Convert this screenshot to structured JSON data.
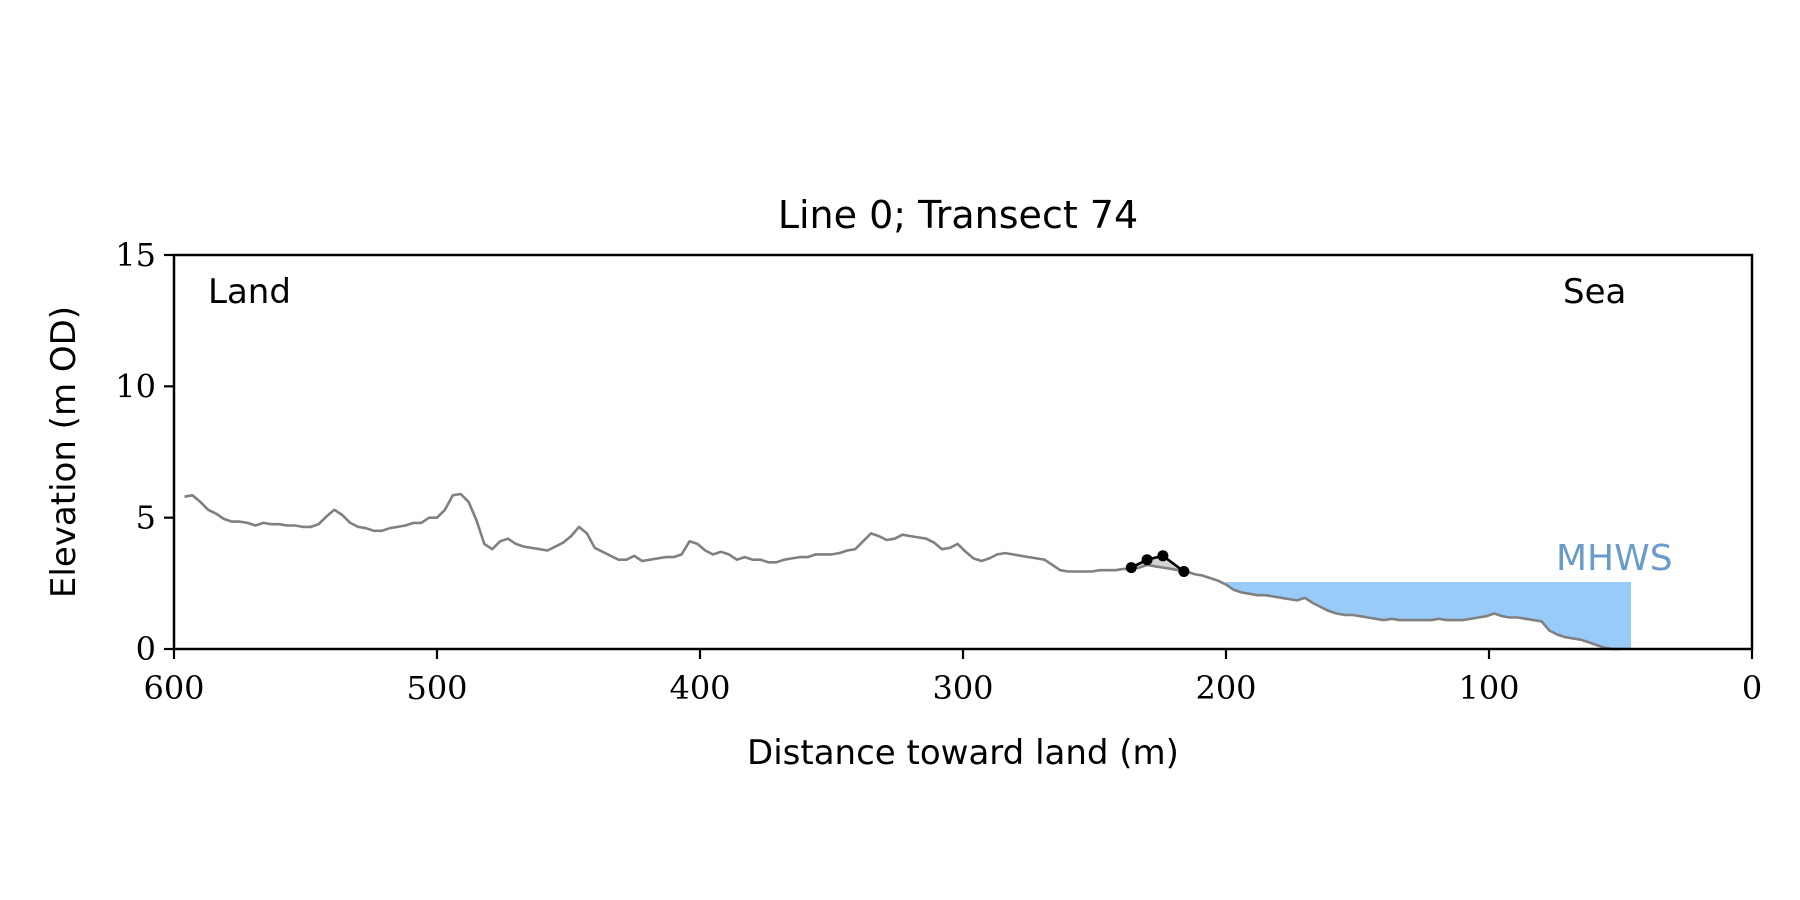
{
  "chart_data": {
    "type": "line",
    "title": "Line 0; Transect 74",
    "xlabel": "Distance toward land (m)",
    "ylabel": "Elevation (m OD)",
    "xlim": [
      600,
      0
    ],
    "ylim": [
      0,
      15
    ],
    "xticks": [
      "600",
      "500",
      "400",
      "300",
      "200",
      "100",
      "0"
    ],
    "yticks": [
      "0",
      "5",
      "10",
      "15"
    ],
    "grid": false,
    "annotations": {
      "land_label": "Land",
      "sea_label": "Sea",
      "mhws_label": "MHWS"
    },
    "mhws": {
      "level": 2.55,
      "x_start": 200,
      "x_end": 46
    },
    "colors": {
      "profile": "#808080",
      "water": "#99cbf9",
      "mhws_text": "#6a9bcb",
      "markers": "#000000",
      "shading": "#d3d3d3"
    },
    "profile": {
      "x": [
        596,
        593,
        590,
        587,
        584,
        581,
        578,
        575,
        572,
        569,
        566,
        563,
        560,
        557,
        554,
        551,
        548,
        545,
        542,
        539,
        536,
        533,
        530,
        527,
        524,
        521,
        518,
        515,
        512,
        509,
        506,
        503,
        500,
        497,
        494,
        491,
        488,
        485,
        482,
        479,
        476,
        473,
        470,
        467,
        464,
        461,
        458,
        455,
        452,
        449,
        446,
        443,
        440,
        437,
        434,
        431,
        428,
        425,
        422,
        419,
        416,
        413,
        410,
        407,
        404,
        401,
        398,
        395,
        392,
        389,
        386,
        383,
        380,
        377,
        374,
        371,
        368,
        365,
        362,
        359,
        356,
        353,
        350,
        347,
        344,
        341,
        338,
        335,
        332,
        329,
        326,
        323,
        320,
        317,
        314,
        311,
        308,
        305,
        302,
        299,
        296,
        293,
        290,
        287,
        284,
        281,
        278,
        275,
        272,
        269,
        266,
        263,
        260,
        257,
        254,
        251,
        248,
        245,
        242,
        239,
        236,
        233,
        230,
        227,
        224,
        221,
        218,
        215,
        212,
        209,
        206,
        203,
        200,
        197,
        194,
        191,
        188,
        185,
        182,
        179,
        176,
        173,
        170,
        167,
        164,
        161,
        158,
        155,
        152,
        149,
        146,
        143,
        140,
        137,
        134,
        131,
        128,
        125,
        122,
        119,
        116,
        113,
        110,
        107,
        104,
        101,
        98,
        95,
        92,
        89,
        86,
        83,
        80,
        77,
        74,
        71,
        68,
        65,
        62,
        59,
        56,
        53,
        50
      ],
      "y": [
        5.8,
        5.85,
        5.6,
        5.3,
        5.15,
        4.95,
        4.85,
        4.85,
        4.8,
        4.7,
        4.8,
        4.75,
        4.75,
        4.7,
        4.7,
        4.65,
        4.65,
        4.75,
        5.05,
        5.3,
        5.1,
        4.8,
        4.65,
        4.6,
        4.5,
        4.5,
        4.6,
        4.65,
        4.7,
        4.8,
        4.8,
        5.0,
        5.0,
        5.3,
        5.85,
        5.9,
        5.6,
        4.9,
        4.0,
        3.8,
        4.1,
        4.2,
        4.0,
        3.9,
        3.85,
        3.8,
        3.75,
        3.9,
        4.05,
        4.3,
        4.65,
        4.4,
        3.85,
        3.7,
        3.55,
        3.4,
        3.4,
        3.55,
        3.35,
        3.4,
        3.45,
        3.5,
        3.5,
        3.6,
        4.1,
        4.0,
        3.75,
        3.6,
        3.7,
        3.6,
        3.4,
        3.5,
        3.4,
        3.4,
        3.3,
        3.3,
        3.4,
        3.45,
        3.5,
        3.5,
        3.6,
        3.6,
        3.6,
        3.65,
        3.75,
        3.8,
        4.1,
        4.4,
        4.3,
        4.15,
        4.2,
        4.35,
        4.3,
        4.25,
        4.2,
        4.05,
        3.8,
        3.85,
        4.0,
        3.7,
        3.45,
        3.35,
        3.45,
        3.6,
        3.65,
        3.6,
        3.55,
        3.5,
        3.45,
        3.4,
        3.2,
        3.0,
        2.95,
        2.95,
        2.95,
        2.95,
        3.0,
        3.0,
        3.0,
        3.05,
        3.05,
        3.1,
        3.2,
        3.15,
        3.1,
        3.05,
        3.0,
        2.95,
        2.85,
        2.8,
        2.7,
        2.6,
        2.45,
        2.25,
        2.15,
        2.1,
        2.05,
        2.05,
        2.0,
        1.95,
        1.9,
        1.85,
        1.95,
        1.75,
        1.6,
        1.45,
        1.35,
        1.3,
        1.3,
        1.25,
        1.2,
        1.15,
        1.1,
        1.15,
        1.1,
        1.1,
        1.1,
        1.1,
        1.1,
        1.15,
        1.1,
        1.1,
        1.1,
        1.15,
        1.2,
        1.25,
        1.35,
        1.25,
        1.2,
        1.2,
        1.15,
        1.1,
        1.05,
        0.7,
        0.55,
        0.45,
        0.4,
        0.35,
        0.25,
        0.15,
        0.05,
        0.0,
        0.0
      ]
    },
    "markers": {
      "x": [
        236,
        230,
        224,
        216
      ],
      "y": [
        3.1,
        3.4,
        3.55,
        2.95
      ]
    }
  }
}
